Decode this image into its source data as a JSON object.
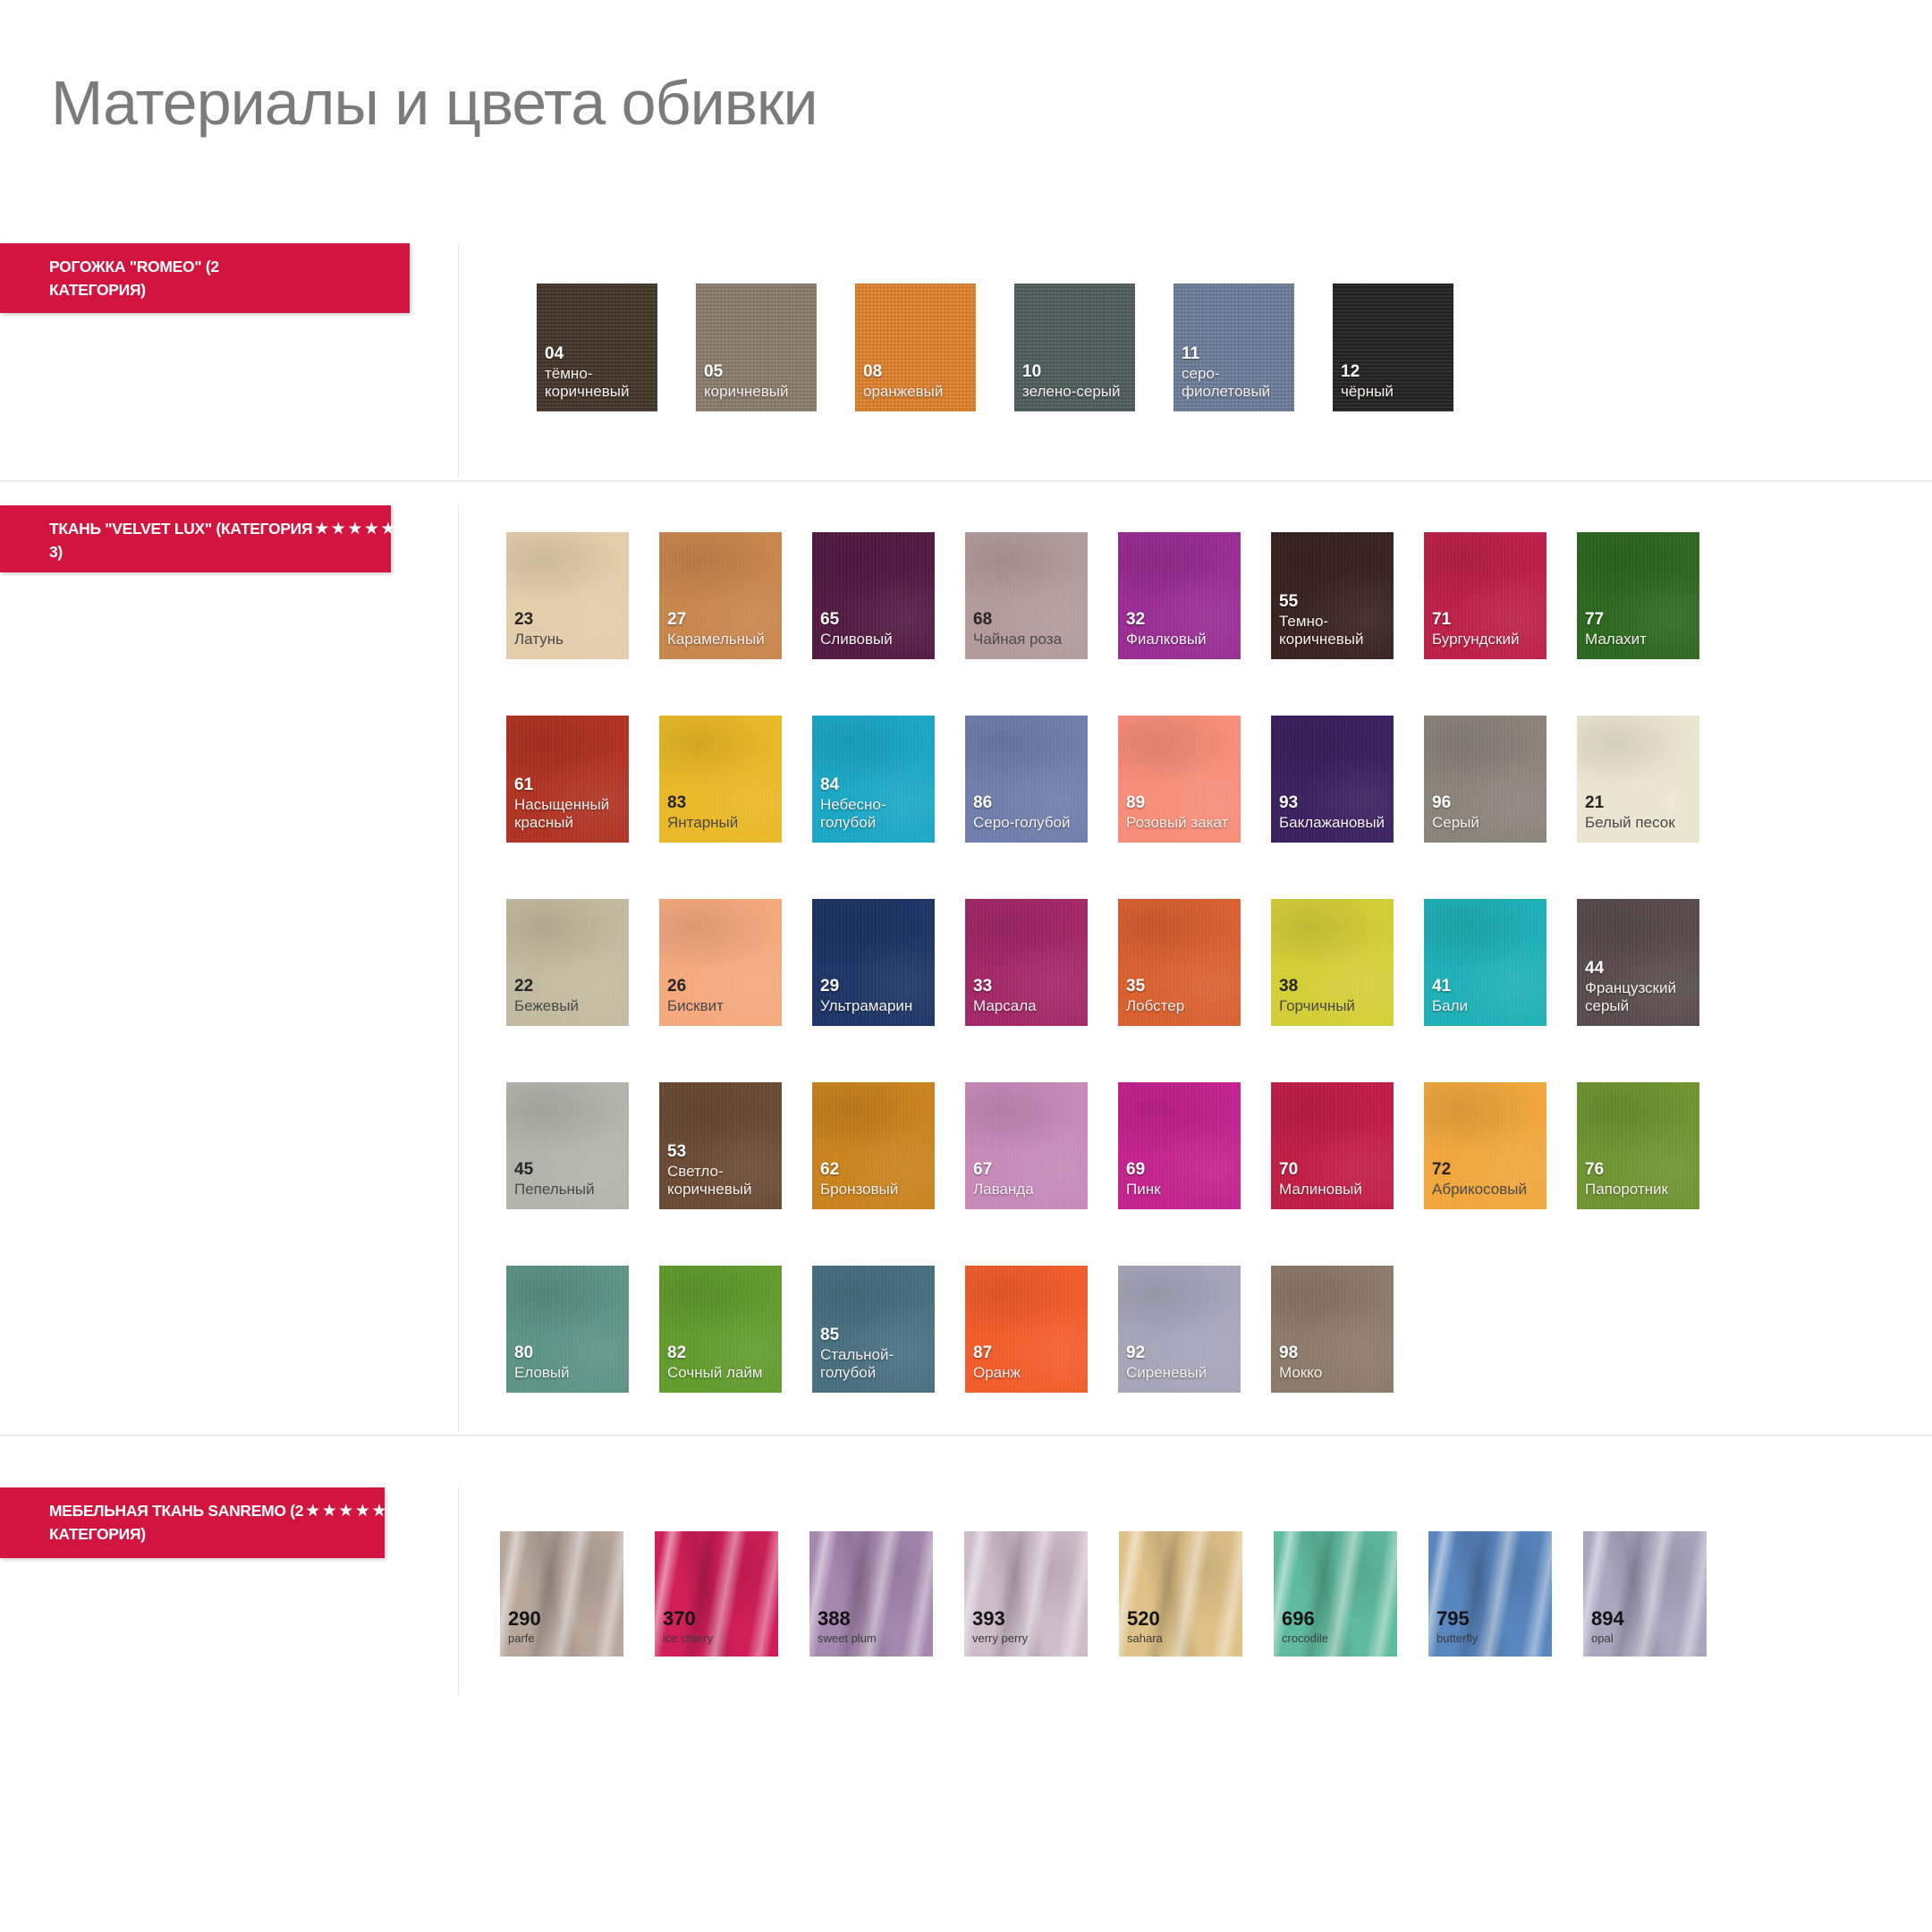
{
  "page": {
    "title": "Материалы и цвета обивки"
  },
  "colors": {
    "banner_red": "#d2153f",
    "title_gray": "#7b7b7b",
    "separator": "#e2e2e2"
  },
  "sections": [
    {
      "id": "romeo",
      "label": "РОГОЖКА \"ROMEO\" (2 КАТЕГОРИЯ)",
      "label_before_stars": "РОГОЖКА \"ROMEO\" (2",
      "stars_text": "",
      "label_after_stars": "КАТЕГОРИЯ)",
      "texture": "weave",
      "swatches": [
        {
          "code": "04",
          "name": "тёмно-коричневый",
          "color": "#44362a",
          "text_style": "light"
        },
        {
          "code": "05",
          "name": "коричневый",
          "color": "#8b7f6d",
          "text_style": "light"
        },
        {
          "code": "08",
          "name": "оранжевый",
          "color": "#e0832e",
          "text_style": "light"
        },
        {
          "code": "10",
          "name": "зелено-серый",
          "color": "#4f5e5d",
          "text_style": "light"
        },
        {
          "code": "11",
          "name": "серо-фиолетовый",
          "color": "#6e7f9b",
          "text_style": "light"
        },
        {
          "code": "12",
          "name": "чёрный",
          "color": "#222222",
          "text_style": "light"
        }
      ]
    },
    {
      "id": "velvet-lux",
      "label": "ТКАНЬ \"VELVET LUX\" (КАТЕГОРИЯ ★★★★★ 3)",
      "label_before_stars": "ТКАНЬ \"VELVET LUX\" (КАТЕГОРИЯ",
      "stars_text": "★★★★★",
      "label_after_stars": "3)",
      "texture": "velvet",
      "swatches": [
        {
          "code": "23",
          "name": "Латунь",
          "color": "#e2cdaa",
          "text_style": "dark"
        },
        {
          "code": "27",
          "name": "Карамельный",
          "color": "#c8854c",
          "text_style": "light"
        },
        {
          "code": "65",
          "name": "Сливовый",
          "color": "#521a41",
          "text_style": "light"
        },
        {
          "code": "68",
          "name": "Чайная роза",
          "color": "#b29a9a",
          "text_style": "dark"
        },
        {
          "code": "32",
          "name": "Фиалковый",
          "color": "#982c92",
          "text_style": "light"
        },
        {
          "code": "55",
          "name": "Темно-коричневый",
          "color": "#38221f",
          "text_style": "light"
        },
        {
          "code": "71",
          "name": "Бургундский",
          "color": "#bc1f47",
          "text_style": "light"
        },
        {
          "code": "77",
          "name": "Малахит",
          "color": "#2c671f",
          "text_style": "light"
        },
        {
          "code": "61",
          "name": "Насыщенный красный",
          "color": "#af3322",
          "text_style": "light"
        },
        {
          "code": "83",
          "name": "Янтарный",
          "color": "#e9b826",
          "text_style": "dark"
        },
        {
          "code": "84",
          "name": "Небесно-голубой",
          "color": "#19a7c5",
          "text_style": "light"
        },
        {
          "code": "86",
          "name": "Серо-голубой",
          "color": "#6f7dab",
          "text_style": "light"
        },
        {
          "code": "89",
          "name": "Розовый закат",
          "color": "#f68d78",
          "text_style": "light"
        },
        {
          "code": "93",
          "name": "Баклажановый",
          "color": "#39205f",
          "text_style": "light"
        },
        {
          "code": "96",
          "name": "Серый",
          "color": "#8b827a",
          "text_style": "light"
        },
        {
          "code": "21",
          "name": "Белый песок",
          "color": "#ebe4d0",
          "text_style": "dark"
        },
        {
          "code": "22",
          "name": "Бежевый",
          "color": "#c2ba9f",
          "text_style": "dark"
        },
        {
          "code": "26",
          "name": "Бисквит",
          "color": "#f4a87c",
          "text_style": "dark"
        },
        {
          "code": "29",
          "name": "Ультрамарин",
          "color": "#1d3464",
          "text_style": "light"
        },
        {
          "code": "33",
          "name": "Марсала",
          "color": "#a22766",
          "text_style": "light"
        },
        {
          "code": "35",
          "name": "Лобстер",
          "color": "#d8602f",
          "text_style": "light"
        },
        {
          "code": "38",
          "name": "Горчичный",
          "color": "#d3ce36",
          "text_style": "dark"
        },
        {
          "code": "41",
          "name": "Бали",
          "color": "#1cb0b6",
          "text_style": "light"
        },
        {
          "code": "44",
          "name": "Французский серый",
          "color": "#574b4d",
          "text_style": "light"
        },
        {
          "code": "45",
          "name": "Пепельный",
          "color": "#b2b4ab",
          "text_style": "dark"
        },
        {
          "code": "53",
          "name": "Светло-коричневый",
          "color": "#6a4a33",
          "text_style": "light"
        },
        {
          "code": "62",
          "name": "Бронзовый",
          "color": "#c9821d",
          "text_style": "light"
        },
        {
          "code": "67",
          "name": "Лаванда",
          "color": "#c689b8",
          "text_style": "light"
        },
        {
          "code": "69",
          "name": "Пинк",
          "color": "#c2228c",
          "text_style": "light"
        },
        {
          "code": "70",
          "name": "Малиновый",
          "color": "#c01d45",
          "text_style": "light"
        },
        {
          "code": "72",
          "name": "Абрикосовый",
          "color": "#f0a63b",
          "text_style": "dark"
        },
        {
          "code": "76",
          "name": "Папоротник",
          "color": "#6e9330",
          "text_style": "light"
        },
        {
          "code": "80",
          "name": "Еловый",
          "color": "#5b9385",
          "text_style": "light"
        },
        {
          "code": "82",
          "name": "Сочный лайм",
          "color": "#619b2c",
          "text_style": "light"
        },
        {
          "code": "85",
          "name": "Стальной-голубой",
          "color": "#486f80",
          "text_style": "light"
        },
        {
          "code": "87",
          "name": "Оранж",
          "color": "#f15c2a",
          "text_style": "light"
        },
        {
          "code": "92",
          "name": "Сиреневый",
          "color": "#a5a5b8",
          "text_style": "light"
        },
        {
          "code": "98",
          "name": "Мокко",
          "color": "#8b7969",
          "text_style": "light"
        }
      ]
    },
    {
      "id": "sanremo",
      "label": "МЕБЕЛЬНАЯ ТКАНЬ SANREMO (2 ★★★★★ КАТЕГОРИЯ)",
      "label_before_stars": "МЕБЕЛЬНАЯ ТКАНЬ SANREMO (2",
      "stars_text": "★★★★★",
      "label_after_stars": "КАТЕГОРИЯ)",
      "texture": "crushed",
      "swatches": [
        {
          "code": "290",
          "name": "",
          "subname": "parfe",
          "color": "#b7a79b",
          "text_style": "dark"
        },
        {
          "code": "370",
          "name": "",
          "subname": "ice cherry",
          "color": "#d01e59",
          "text_style": "dark"
        },
        {
          "code": "388",
          "name": "",
          "subname": "sweet plum",
          "color": "#a687ae",
          "text_style": "dark"
        },
        {
          "code": "393",
          "name": "",
          "subname": "verry perry",
          "color": "#cdbcca",
          "text_style": "dark"
        },
        {
          "code": "520",
          "name": "",
          "subname": "sahara",
          "color": "#dfc287",
          "text_style": "dark"
        },
        {
          "code": "696",
          "name": "",
          "subname": "crocodile",
          "color": "#5fbb9d",
          "text_style": "dark"
        },
        {
          "code": "795",
          "name": "",
          "subname": "butterfly",
          "color": "#5886be",
          "text_style": "dark"
        },
        {
          "code": "894",
          "name": "",
          "subname": "opal",
          "color": "#aaa6c0",
          "text_style": "dark"
        }
      ]
    }
  ]
}
